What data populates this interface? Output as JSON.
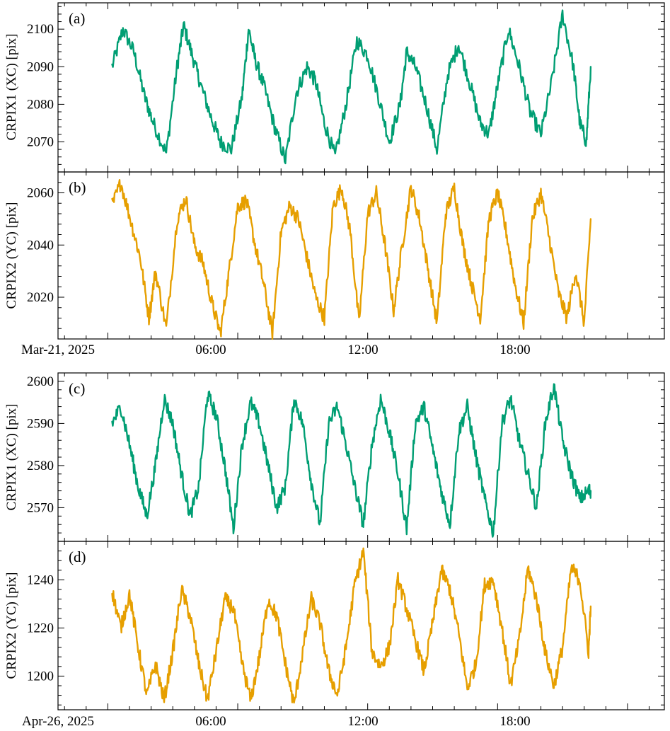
{
  "chart_data": [
    {
      "panel_label": "(a)",
      "type": "line",
      "ylabel": "CRPIX1 (XC) [pix]",
      "color": "#009E73",
      "ylim": [
        2062,
        2107
      ],
      "yticks": [
        2070,
        2080,
        2090,
        2100
      ],
      "series": [
        {
          "x": [
            0.0,
            0.5,
            1.0,
            1.5,
            1.9,
            2.5,
            3.0,
            3.3,
            3.7,
            4.1,
            4.6,
            5.0,
            5.5,
            6.0,
            6.3,
            6.6,
            7.0,
            7.5,
            8.0,
            8.5,
            9.0,
            9.4,
            9.8,
            10.3,
            10.8,
            11.3,
            11.8,
            12.3,
            12.8,
            13.3,
            13.6,
            14.0,
            14.5,
            15.0,
            15.5,
            16.0,
            16.5,
            17.0,
            17.4,
            17.8,
            18.3,
            18.8,
            19.3,
            19.8,
            20.3,
            20.8,
            21.3,
            21.6,
            21.9,
            22.1
          ],
          "y": [
            2090,
            2100,
            2094,
            2082,
            2075,
            2067,
            2090,
            2101,
            2093,
            2085,
            2076,
            2070,
            2068,
            2082,
            2100,
            2092,
            2085,
            2074,
            2065,
            2083,
            2090,
            2086,
            2075,
            2066,
            2080,
            2097,
            2093,
            2082,
            2070,
            2080,
            2094,
            2090,
            2080,
            2068,
            2088,
            2096,
            2086,
            2075,
            2072,
            2085,
            2100,
            2090,
            2078,
            2072,
            2086,
            2104,
            2090,
            2075,
            2070,
            2090
          ]
        }
      ]
    },
    {
      "panel_label": "(b)",
      "type": "line",
      "ylabel": "CRPIX2 (YC) [pix]",
      "color": "#E69F00",
      "ylim": [
        2004,
        2068
      ],
      "yticks": [
        2020,
        2040,
        2060
      ],
      "series": [
        {
          "x": [
            0.0,
            0.4,
            0.9,
            1.3,
            1.7,
            2.0,
            2.5,
            3.0,
            3.4,
            3.8,
            4.2,
            4.6,
            5.0,
            5.4,
            5.8,
            6.2,
            6.6,
            7.0,
            7.4,
            7.8,
            8.2,
            8.6,
            9.0,
            9.4,
            9.8,
            10.2,
            10.6,
            11.0,
            11.4,
            11.8,
            12.2,
            12.6,
            13.0,
            13.4,
            13.8,
            14.2,
            14.6,
            15.0,
            15.4,
            15.8,
            16.2,
            16.6,
            17.0,
            17.4,
            17.8,
            18.2,
            18.6,
            19.0,
            19.4,
            19.8,
            20.2,
            20.6,
            21.0,
            21.4,
            21.8,
            22.1
          ],
          "y": [
            2055,
            2064,
            2048,
            2035,
            2012,
            2030,
            2008,
            2050,
            2058,
            2040,
            2033,
            2018,
            2006,
            2030,
            2055,
            2057,
            2040,
            2025,
            2006,
            2045,
            2055,
            2050,
            2035,
            2020,
            2012,
            2055,
            2062,
            2045,
            2010,
            2052,
            2060,
            2040,
            2015,
            2040,
            2062,
            2050,
            2030,
            2010,
            2052,
            2062,
            2040,
            2025,
            2012,
            2050,
            2060,
            2045,
            2025,
            2010,
            2050,
            2060,
            2042,
            2022,
            2012,
            2030,
            2010,
            2050
          ]
        }
      ]
    },
    {
      "panel_label": "(c)",
      "type": "line",
      "ylabel": "CRPIX1 (XC) [pix]",
      "color": "#009E73",
      "ylim": [
        2562,
        2602
      ],
      "yticks": [
        2570,
        2580,
        2590,
        2600
      ],
      "series": [
        {
          "x": [
            0.0,
            0.4,
            0.8,
            1.2,
            1.6,
            2.0,
            2.4,
            2.8,
            3.2,
            3.6,
            4.0,
            4.4,
            4.8,
            5.2,
            5.6,
            6.0,
            6.4,
            6.8,
            7.2,
            7.6,
            8.0,
            8.4,
            8.8,
            9.2,
            9.6,
            10.0,
            10.4,
            10.8,
            11.2,
            11.6,
            12.0,
            12.4,
            12.8,
            13.2,
            13.6,
            14.0,
            14.4,
            14.8,
            15.2,
            15.6,
            16.0,
            16.4,
            16.8,
            17.2,
            17.6,
            18.0,
            18.4,
            18.8,
            19.2,
            19.6,
            20.0,
            20.4,
            20.8,
            21.2,
            21.6,
            22.0,
            22.1
          ],
          "y": [
            2590,
            2594,
            2585,
            2575,
            2568,
            2580,
            2596,
            2590,
            2578,
            2568,
            2575,
            2597,
            2592,
            2580,
            2565,
            2585,
            2595,
            2590,
            2580,
            2570,
            2575,
            2596,
            2590,
            2576,
            2566,
            2590,
            2594,
            2585,
            2575,
            2566,
            2585,
            2596,
            2588,
            2578,
            2565,
            2590,
            2594,
            2584,
            2574,
            2566,
            2588,
            2594,
            2582,
            2572,
            2564,
            2590,
            2596,
            2586,
            2578,
            2570,
            2590,
            2599,
            2586,
            2578,
            2572,
            2574,
            2574
          ]
        }
      ]
    },
    {
      "panel_label": "(d)",
      "type": "line",
      "ylabel": "CRPIX2 (YC) [pix]",
      "color": "#E69F00",
      "ylim": [
        1186,
        1256
      ],
      "yticks": [
        1200,
        1220,
        1240
      ],
      "series": [
        {
          "x": [
            0.0,
            0.4,
            0.8,
            1.2,
            1.6,
            2.0,
            2.4,
            2.8,
            3.2,
            3.6,
            4.0,
            4.4,
            4.8,
            5.2,
            5.6,
            6.0,
            6.4,
            6.8,
            7.2,
            7.6,
            8.0,
            8.4,
            8.8,
            9.2,
            9.6,
            10.0,
            10.4,
            10.8,
            11.2,
            11.6,
            12.0,
            12.4,
            12.8,
            13.2,
            13.6,
            14.0,
            14.4,
            14.8,
            15.2,
            15.6,
            16.0,
            16.4,
            16.8,
            17.2,
            17.6,
            18.0,
            18.4,
            18.8,
            19.2,
            19.6,
            20.0,
            20.4,
            20.8,
            21.2,
            21.6,
            22.0,
            22.1
          ],
          "y": [
            1235,
            1220,
            1234,
            1212,
            1192,
            1205,
            1190,
            1210,
            1236,
            1225,
            1205,
            1190,
            1210,
            1232,
            1228,
            1205,
            1190,
            1208,
            1232,
            1225,
            1205,
            1188,
            1210,
            1232,
            1222,
            1202,
            1192,
            1212,
            1238,
            1252,
            1210,
            1204,
            1212,
            1240,
            1228,
            1215,
            1202,
            1222,
            1244,
            1236,
            1218,
            1195,
            1205,
            1238,
            1240,
            1220,
            1196,
            1215,
            1245,
            1232,
            1210,
            1196,
            1212,
            1245,
            1240,
            1210,
            1229
          ]
        }
      ]
    }
  ],
  "panels": [
    {
      "xtick_labels": [
        "Mar-21, 2025",
        "06:00",
        "12:00",
        "18:00"
      ]
    },
    {
      "xtick_labels": [
        "Apr-26, 2025",
        "06:00",
        "12:00",
        "18:00"
      ]
    }
  ]
}
